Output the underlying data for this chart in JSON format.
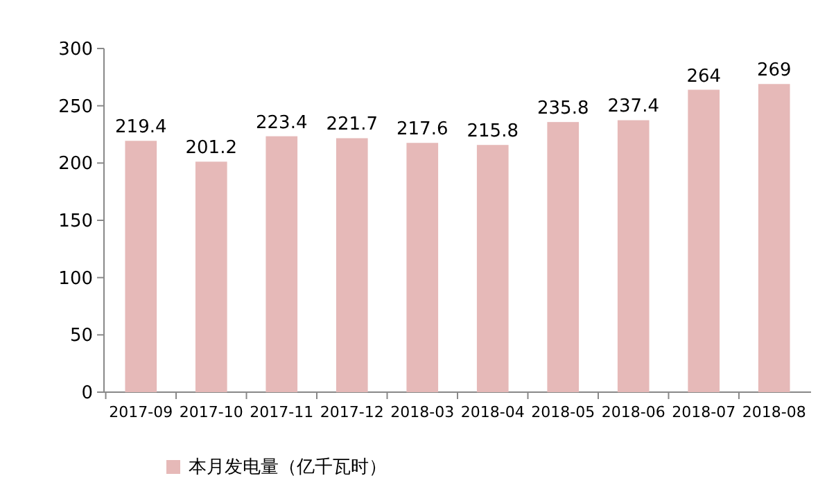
{
  "chart_data": {
    "type": "bar",
    "categories": [
      "2017-09",
      "2017-10",
      "2017-11",
      "2017-12",
      "2018-03",
      "2018-04",
      "2018-05",
      "2018-06",
      "2018-07",
      "2018-08"
    ],
    "series": [
      {
        "name": "本月发电量（亿千瓦时）",
        "color": "#e6b9b8",
        "values": [
          219.4,
          201.2,
          223.4,
          221.7,
          217.6,
          215.8,
          235.8,
          237.4,
          264,
          269
        ]
      }
    ],
    "ylim": [
      0,
      300
    ],
    "yticks": [
      0,
      50,
      100,
      150,
      200,
      250,
      300
    ],
    "grid": false,
    "legend": "bottom",
    "data_labels": true
  }
}
